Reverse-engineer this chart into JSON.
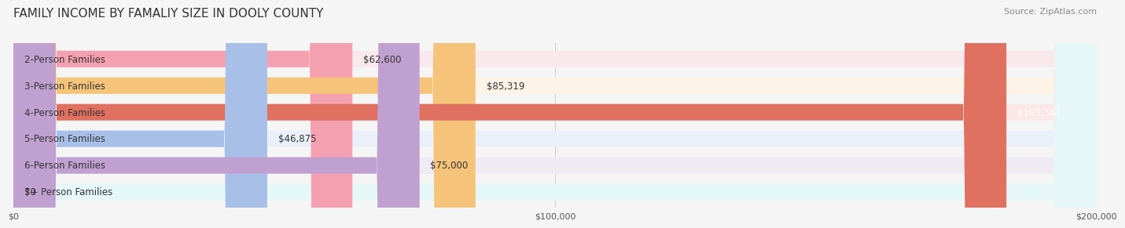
{
  "title": "FAMILY INCOME BY FAMALIY SIZE IN DOOLY COUNTY",
  "source": "Source: ZipAtlas.com",
  "categories": [
    "2-Person Families",
    "3-Person Families",
    "4-Person Families",
    "5-Person Families",
    "6-Person Families",
    "7+ Person Families"
  ],
  "values": [
    62600,
    85319,
    183347,
    46875,
    75000,
    0
  ],
  "bar_colors": [
    "#f4a0b0",
    "#f5c47a",
    "#e07060",
    "#a8c0e8",
    "#c0a0d0",
    "#80d0c8"
  ],
  "bg_colors": [
    "#f9e8ec",
    "#fdf3e7",
    "#fbe8e6",
    "#eaf0fa",
    "#f0eaf5",
    "#e5f7f6"
  ],
  "value_labels": [
    "$62,600",
    "$85,319",
    "$183,347",
    "$46,875",
    "$75,000",
    "$0"
  ],
  "xlim": [
    0,
    200000
  ],
  "xticks": [
    0,
    100000,
    200000
  ],
  "xtick_labels": [
    "$0",
    "$100,000",
    "$200,000"
  ],
  "background_color": "#f5f5f5",
  "title_fontsize": 11,
  "source_fontsize": 8,
  "bar_height": 0.62,
  "label_fontsize": 8.5
}
